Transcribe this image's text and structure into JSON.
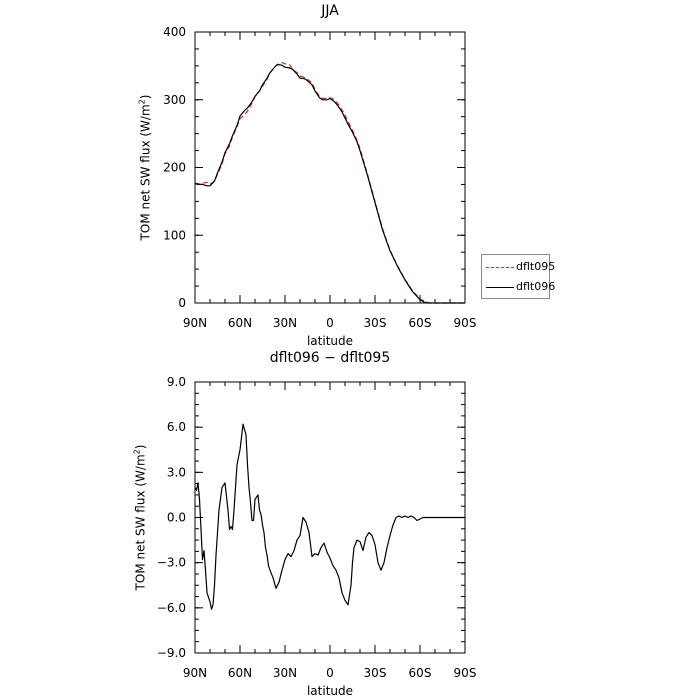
{
  "chart_data": [
    {
      "type": "line",
      "title": "JJA",
      "xlabel": "latitude",
      "ylabel_prefix": "TOM net SW flux (W/m",
      "ylabel_sup": "2",
      "ylabel_suffix": ")",
      "xlim": [
        90,
        -90
      ],
      "ylim": [
        0,
        400
      ],
      "xticks": [
        90,
        60,
        30,
        0,
        -30,
        -60,
        -90
      ],
      "xtick_labels": [
        "90N",
        "60N",
        "30N",
        "0",
        "30S",
        "60S",
        "90S"
      ],
      "yticks": [
        0,
        100,
        200,
        300,
        400
      ],
      "ytick_labels": [
        "0",
        "100",
        "200",
        "300",
        "400"
      ],
      "legend_position": "right",
      "series": [
        {
          "name": "dflt095",
          "color": "#d62728",
          "dash": "dashed",
          "x": [
            90,
            87,
            85,
            82,
            80,
            77,
            75,
            72,
            70,
            67,
            65,
            62,
            60,
            57,
            55,
            52,
            50,
            47,
            45,
            42,
            40,
            37,
            35,
            32,
            30,
            27,
            25,
            22,
            20,
            17,
            15,
            12,
            10,
            7,
            5,
            2,
            0,
            -3,
            -5,
            -8,
            -10,
            -12,
            -15,
            -18,
            -20,
            -25,
            -30,
            -35,
            -40,
            -45,
            -50,
            -55,
            -60,
            -63,
            -65,
            -67,
            -70,
            -72,
            -75,
            -80,
            -85,
            -90
          ],
          "y": [
            175,
            176,
            177,
            178,
            175,
            180,
            190,
            205,
            220,
            232,
            245,
            260,
            272,
            278,
            283,
            295,
            305,
            313,
            320,
            330,
            340,
            348,
            352,
            355,
            353,
            352,
            345,
            340,
            335,
            333,
            330,
            325,
            315,
            305,
            302,
            302,
            303,
            300,
            295,
            285,
            277,
            268,
            255,
            240,
            228,
            190,
            150,
            110,
            78,
            55,
            35,
            18,
            6,
            2,
            1,
            0,
            0,
            0,
            0,
            0,
            0,
            0
          ]
        },
        {
          "name": "dflt096",
          "color": "#000000",
          "dash": "solid",
          "x": [
            90,
            87,
            85,
            82,
            80,
            77,
            75,
            72,
            70,
            67,
            65,
            62,
            60,
            57,
            55,
            52,
            50,
            47,
            45,
            42,
            40,
            37,
            35,
            32,
            30,
            27,
            25,
            22,
            20,
            17,
            15,
            12,
            10,
            7,
            5,
            2,
            0,
            -3,
            -5,
            -8,
            -10,
            -12,
            -15,
            -18,
            -20,
            -25,
            -30,
            -35,
            -40,
            -45,
            -50,
            -55,
            -60,
            -63,
            -65,
            -67,
            -70,
            -72,
            -75,
            -80,
            -85,
            -90
          ],
          "y": [
            177,
            175,
            175,
            173,
            173,
            180,
            192,
            208,
            222,
            235,
            247,
            262,
            276,
            284,
            288,
            297,
            305,
            313,
            322,
            332,
            340,
            348,
            352,
            351,
            348,
            347,
            345,
            338,
            332,
            331,
            328,
            322,
            313,
            303,
            300,
            300,
            302,
            297,
            292,
            282,
            273,
            264,
            252,
            238,
            225,
            188,
            148,
            108,
            77,
            54,
            34,
            17,
            5,
            1,
            0,
            0,
            0,
            0,
            0,
            0,
            0,
            0
          ]
        }
      ]
    },
    {
      "type": "line",
      "title": "dflt096 − dflt095",
      "xlabel": "latitude",
      "ylabel_prefix": "TOM net SW flux (W/m",
      "ylabel_sup": "2",
      "ylabel_suffix": ")",
      "xlim": [
        90,
        -90
      ],
      "ylim": [
        -9,
        9
      ],
      "xticks": [
        90,
        60,
        30,
        0,
        -30,
        -60,
        -90
      ],
      "xtick_labels": [
        "90N",
        "60N",
        "30N",
        "0",
        "30S",
        "60S",
        "90S"
      ],
      "yticks": [
        -9,
        -6,
        -3,
        0,
        3,
        6,
        9
      ],
      "ytick_labels": [
        "−9.0",
        "−6.0",
        "−3.0",
        "0.0",
        "3.0",
        "6.0",
        "9.0"
      ],
      "series": [
        {
          "color": "#000000",
          "dash": "solid",
          "x": [
            90,
            89,
            88,
            87,
            86,
            85,
            84,
            83,
            82,
            81,
            80,
            79,
            78,
            77,
            76,
            74,
            72,
            70,
            68,
            67,
            66,
            65,
            64,
            63,
            62,
            60,
            58,
            56,
            55,
            54,
            53,
            52,
            51,
            50,
            48,
            47,
            46,
            45,
            44,
            43,
            42,
            41,
            40,
            38,
            36,
            34,
            32,
            30,
            28,
            26,
            24,
            22,
            20,
            18,
            16,
            14,
            12,
            10,
            8,
            6,
            4,
            2,
            0,
            -2,
            -4,
            -6,
            -8,
            -10,
            -12,
            -14,
            -15,
            -16,
            -18,
            -20,
            -22,
            -24,
            -26,
            -28,
            -30,
            -32,
            -34,
            -36,
            -38,
            -40,
            -42,
            -44,
            -46,
            -48,
            -50,
            -52,
            -54,
            -56,
            -58,
            -60,
            -62,
            -64,
            -66,
            -68,
            -70,
            -75,
            -80,
            -85,
            -90
          ],
          "y": [
            2.0,
            1.8,
            2.3,
            1.2,
            -0.8,
            -2.8,
            -2.2,
            -3.5,
            -5.0,
            -5.3,
            -5.6,
            -6.1,
            -5.8,
            -4.5,
            -2.5,
            0.5,
            2.0,
            2.3,
            0.5,
            -0.8,
            -0.6,
            -0.8,
            0.5,
            2.0,
            3.5,
            4.5,
            6.2,
            5.5,
            3.5,
            2.0,
            1.0,
            -0.2,
            -0.2,
            1.2,
            1.5,
            0.5,
            0.2,
            -0.5,
            -1.0,
            -2.0,
            -2.5,
            -3.2,
            -3.5,
            -4.0,
            -4.7,
            -4.3,
            -3.5,
            -2.8,
            -2.4,
            -2.6,
            -2.2,
            -1.5,
            -1.2,
            0.0,
            -0.3,
            -1.0,
            -2.6,
            -2.4,
            -2.5,
            -2.0,
            -1.7,
            -2.3,
            -2.7,
            -3.2,
            -3.5,
            -4.0,
            -5.0,
            -5.5,
            -5.8,
            -4.5,
            -3.0,
            -2.0,
            -1.5,
            -1.6,
            -2.2,
            -1.3,
            -1.0,
            -1.2,
            -1.8,
            -3.0,
            -3.5,
            -3.0,
            -2.0,
            -1.2,
            -0.5,
            0.0,
            0.1,
            0.0,
            0.1,
            0.0,
            0.1,
            0.0,
            -0.2,
            -0.1,
            0.0,
            0.0,
            0.0,
            0.0,
            0.0,
            0.0,
            0.0,
            0.0,
            0.0
          ]
        }
      ]
    }
  ]
}
